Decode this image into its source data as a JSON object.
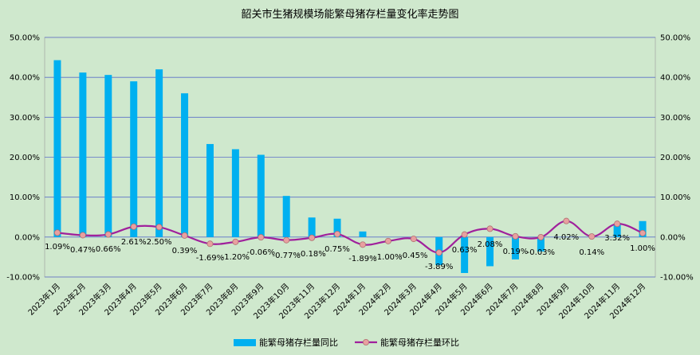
{
  "chart_data": {
    "type": "bar",
    "title": "韶关市生猪规模场能繁母猪存栏量变化率走势图",
    "categories": [
      "2023年1月",
      "2023年2月",
      "2023年3月",
      "2023年4月",
      "2023年5月",
      "2023年6月",
      "2023年7月",
      "2023年8月",
      "2023年9月",
      "2023年10月",
      "2023年11月",
      "2023年12月",
      "2024年1月",
      "2024年2月",
      "2024年3月",
      "2024年4月",
      "2024年5月",
      "2024年6月",
      "2024年7月",
      "2024年8月",
      "2024年9月",
      "2024年10月",
      "2024年11月",
      "2024年12月"
    ],
    "series": [
      {
        "name": "能繁母猪存栏量同比",
        "type": "bar",
        "axis": "left",
        "color": "#00b0f0",
        "values": [
          44.3,
          41.2,
          40.6,
          39.0,
          42.0,
          36.0,
          23.3,
          22.0,
          20.6,
          10.3,
          4.9,
          4.6,
          1.4,
          0.0,
          0.0,
          -7.0,
          -9.0,
          -7.3,
          -5.6,
          -3.6,
          0.0,
          0.0,
          3.2,
          4.0
        ]
      },
      {
        "name": "能繁母猪存栏量环比",
        "type": "line",
        "axis": "right",
        "color": "#a0209c",
        "marker_color": "#e8a0a0",
        "values": [
          1.09,
          0.47,
          0.66,
          2.61,
          2.5,
          0.39,
          -1.69,
          -1.2,
          -0.06,
          -0.77,
          -0.18,
          0.75,
          -1.89,
          -1.0,
          -0.45,
          -3.89,
          0.63,
          2.08,
          0.19,
          -0.03,
          4.02,
          0.14,
          3.32,
          1.0
        ],
        "labels": [
          "1.09%",
          "0.47%",
          "0.66%",
          "2.61%",
          "2.50%",
          "0.39%",
          "-1.69%",
          "-1.20%",
          "-0.06%",
          "-0.77%",
          "-0.18%",
          "0.75%",
          "-1.89%",
          "-1.00%",
          "-0.45%",
          "-3.89%",
          "0.63%",
          "2.08%",
          "0.19%",
          "-0.03%",
          "4.02%",
          "0.14%",
          "3.32%",
          "1.00%"
        ]
      }
    ],
    "y_left": {
      "min": -10,
      "max": 50,
      "step": 10,
      "tick_labels": [
        "-10.00%",
        "0.00%",
        "10.00%",
        "20.00%",
        "30.00%",
        "40.00%",
        "50.00%"
      ]
    },
    "y_right": {
      "min": -10,
      "max": 50,
      "step": 10,
      "tick_labels": [
        "-10.00%",
        "0.00%",
        "10.00%",
        "20.00%",
        "30.00%",
        "40.00%",
        "50.00%"
      ]
    },
    "grid": true,
    "legend_position": "bottom"
  }
}
